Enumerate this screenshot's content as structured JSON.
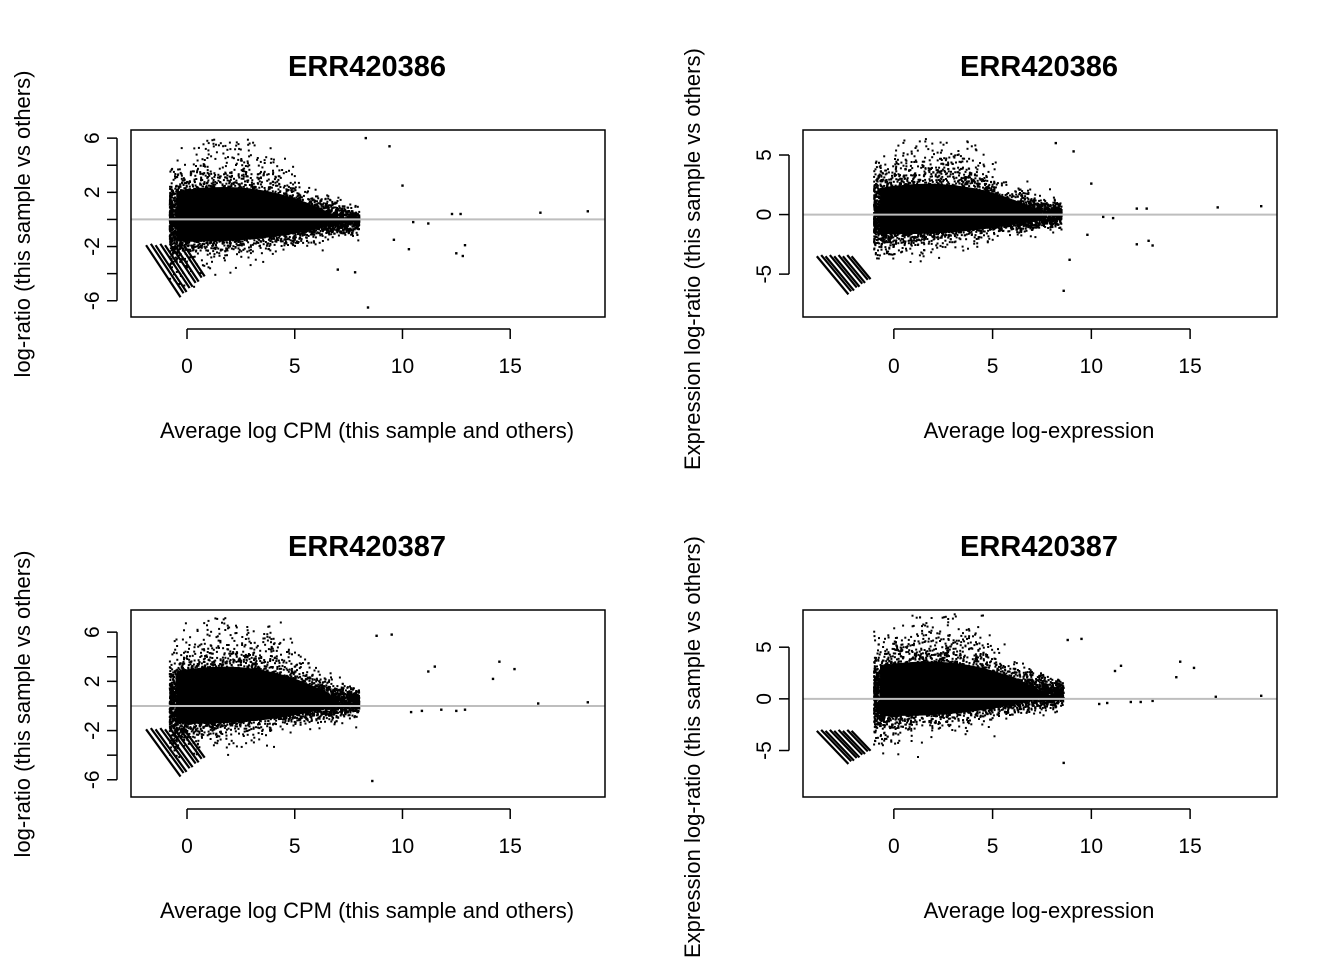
{
  "chart_data": [
    {
      "type": "scatter",
      "title": "ERR420386",
      "xlabel": "Average log CPM (this sample and others)",
      "ylabel": "log-ratio (this sample vs others)",
      "xlim": [
        -2.6,
        19.4
      ],
      "ylim": [
        -7.2,
        6.6
      ],
      "xticks": [
        "0",
        "5",
        "10",
        "15"
      ],
      "yticks": [
        "-6",
        "-2",
        "2",
        "6"
      ],
      "reference_line_y": 0,
      "reference_line_color": "#bebebe",
      "point_color": "#000000",
      "cloud": {
        "x_range": [
          -0.8,
          8.0
        ],
        "y_range": [
          -6.5,
          5.9
        ],
        "center_y": 0.0
      },
      "low_count_streaks": {
        "count": 9,
        "x_start": -1.9,
        "y_start": -1.9,
        "slope": -2.4
      },
      "outliers": [
        [
          8.3,
          6.0
        ],
        [
          9.4,
          5.4
        ],
        [
          10.0,
          2.5
        ],
        [
          12.3,
          0.4
        ],
        [
          12.7,
          0.4
        ],
        [
          12.9,
          -1.9
        ],
        [
          12.5,
          -2.5
        ],
        [
          12.8,
          -2.7
        ],
        [
          16.4,
          0.5
        ],
        [
          18.6,
          0.6
        ],
        [
          10.5,
          -0.2
        ],
        [
          11.2,
          -0.3
        ],
        [
          9.6,
          -1.5
        ],
        [
          10.3,
          -2.2
        ],
        [
          8.4,
          -6.5
        ],
        [
          7.8,
          -3.9
        ],
        [
          7.0,
          -3.7
        ]
      ],
      "legend": "none"
    },
    {
      "type": "scatter",
      "title": "ERR420386",
      "xlabel": "Average log-expression",
      "ylabel": "Expression log-ratio (this sample vs others)",
      "xlim": [
        -4.6,
        19.4
      ],
      "ylim": [
        -8.6,
        7.1
      ],
      "xticks": [
        "0",
        "5",
        "10",
        "15"
      ],
      "yticks": [
        "-5",
        "0",
        "5"
      ],
      "reference_line_y": 0,
      "reference_line_color": "#bebebe",
      "point_color": "#000000",
      "cloud": {
        "x_range": [
          -1.0,
          8.5
        ],
        "y_range": [
          -6.5,
          6.4
        ],
        "center_y": 0.0
      },
      "low_count_streaks": {
        "count": 9,
        "x_start": -3.9,
        "y_start": -3.5,
        "slope": -2.0
      },
      "outliers": [
        [
          8.2,
          6.0
        ],
        [
          9.1,
          5.3
        ],
        [
          10.0,
          2.6
        ],
        [
          12.3,
          0.5
        ],
        [
          12.8,
          0.5
        ],
        [
          12.9,
          -2.2
        ],
        [
          12.3,
          -2.5
        ],
        [
          13.1,
          -2.6
        ],
        [
          16.4,
          0.6
        ],
        [
          18.6,
          0.7
        ],
        [
          10.6,
          -0.2
        ],
        [
          11.1,
          -0.3
        ],
        [
          9.8,
          -1.7
        ],
        [
          8.6,
          -6.4
        ],
        [
          8.9,
          -3.8
        ]
      ],
      "legend": "none"
    },
    {
      "type": "scatter",
      "title": "ERR420387",
      "xlabel": "Average log CPM (this sample and others)",
      "ylabel": "log-ratio (this sample vs others)",
      "xlim": [
        -2.6,
        19.4
      ],
      "ylim": [
        -7.4,
        7.8
      ],
      "xticks": [
        "0",
        "5",
        "10",
        "15"
      ],
      "yticks": [
        "-6",
        "-2",
        "2",
        "6"
      ],
      "reference_line_y": 0,
      "reference_line_color": "#bebebe",
      "point_color": "#000000",
      "cloud": {
        "x_range": [
          -0.8,
          8.0
        ],
        "y_range": [
          -6.9,
          7.3
        ],
        "center_y": 0.4
      },
      "low_count_streaks": {
        "count": 9,
        "x_start": -1.9,
        "y_start": -1.9,
        "slope": -2.4
      },
      "outliers": [
        [
          9.5,
          5.8
        ],
        [
          8.8,
          5.7
        ],
        [
          11.2,
          2.8
        ],
        [
          11.5,
          3.2
        ],
        [
          14.2,
          2.2
        ],
        [
          14.5,
          3.6
        ],
        [
          15.2,
          3.0
        ],
        [
          16.3,
          0.2
        ],
        [
          18.6,
          0.3
        ],
        [
          11.8,
          -0.3
        ],
        [
          12.5,
          -0.4
        ],
        [
          12.9,
          -0.3
        ],
        [
          8.6,
          -6.1
        ],
        [
          10.4,
          -0.5
        ],
        [
          10.9,
          -0.4
        ]
      ],
      "legend": "none"
    },
    {
      "type": "scatter",
      "title": "ERR420387",
      "xlabel": "Average log-expression",
      "ylabel": "Expression log-ratio (this sample vs others)",
      "xlim": [
        -4.6,
        19.4
      ],
      "ylim": [
        -9.5,
        8.6
      ],
      "xticks": [
        "0",
        "5",
        "10",
        "15"
      ],
      "yticks": [
        "-5",
        "0",
        "5"
      ],
      "reference_line_y": 0,
      "reference_line_color": "#bebebe",
      "point_color": "#000000",
      "cloud": {
        "x_range": [
          -1.0,
          8.6
        ],
        "y_range": [
          -8.0,
          8.2
        ],
        "center_y": 0.5
      },
      "low_count_streaks": {
        "count": 9,
        "x_start": -3.9,
        "y_start": -3.1,
        "slope": -2.0
      },
      "outliers": [
        [
          9.5,
          5.8
        ],
        [
          8.8,
          5.7
        ],
        [
          11.2,
          2.7
        ],
        [
          11.5,
          3.2
        ],
        [
          14.3,
          2.1
        ],
        [
          14.5,
          3.6
        ],
        [
          15.2,
          3.0
        ],
        [
          16.3,
          0.2
        ],
        [
          18.6,
          0.3
        ],
        [
          12.0,
          -0.3
        ],
        [
          12.5,
          -0.3
        ],
        [
          13.1,
          -0.2
        ],
        [
          8.6,
          -6.2
        ],
        [
          10.8,
          -0.4
        ],
        [
          10.4,
          -0.5
        ]
      ],
      "legend": "none"
    }
  ]
}
